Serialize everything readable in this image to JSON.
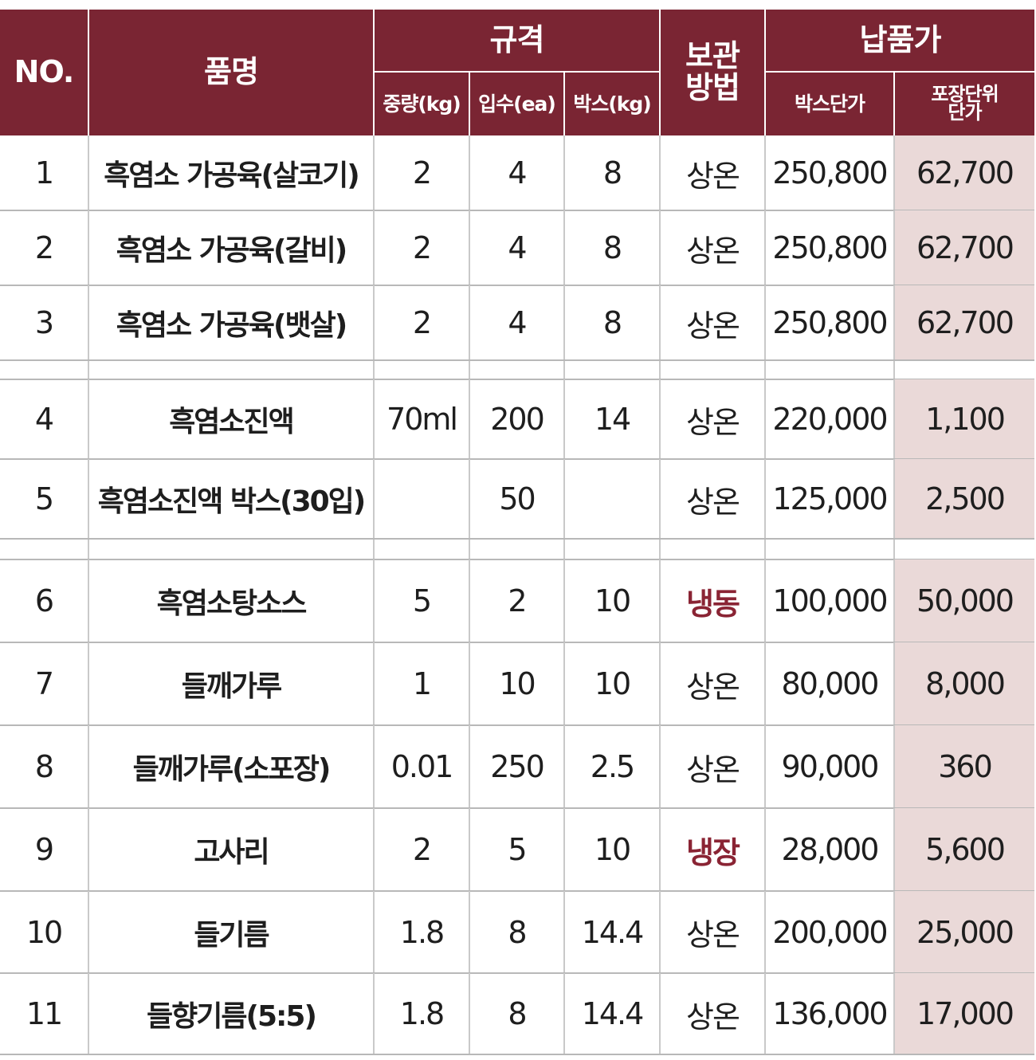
{
  "header": {
    "no": "NO.",
    "name": "품명",
    "spec": "규격",
    "weight": "중량(kg)",
    "count": "입수(ea)",
    "box_kg": "박스(kg)",
    "storage": "보관\n방법",
    "price": "납품가",
    "box_price": "박스단가",
    "unit_price": "포장단위\n단가"
  },
  "accent_color": "#7a2533",
  "unit_price_bg": "#ead9d8",
  "rows": [
    {
      "no": "1",
      "name": "흑염소 가공육(살코기)",
      "weight": "2",
      "count": "4",
      "box_kg": "8",
      "storage": "상온",
      "box_price": "250,800",
      "unit_price": "62,700"
    },
    {
      "no": "2",
      "name": "흑염소 가공육(갈비)",
      "weight": "2",
      "count": "4",
      "box_kg": "8",
      "storage": "상온",
      "box_price": "250,800",
      "unit_price": "62,700"
    },
    {
      "no": "3",
      "name": "흑염소 가공육(뱃살)",
      "weight": "2",
      "count": "4",
      "box_kg": "8",
      "storage": "상온",
      "box_price": "250,800",
      "unit_price": "62,700"
    },
    {
      "no": "4",
      "name": "흑염소진액",
      "weight": "70ml",
      "count": "200",
      "box_kg": "14",
      "storage": "상온",
      "box_price": "220,000",
      "unit_price": "1,100"
    },
    {
      "no": "5",
      "name": "흑염소진액 박스(30입)",
      "weight": "",
      "count": "50",
      "box_kg": "",
      "storage": "상온",
      "box_price": "125,000",
      "unit_price": "2,500"
    },
    {
      "no": "6",
      "name": "흑염소탕소스",
      "weight": "5",
      "count": "2",
      "box_kg": "10",
      "storage": "냉동",
      "box_price": "100,000",
      "unit_price": "50,000"
    },
    {
      "no": "7",
      "name": "들깨가루",
      "weight": "1",
      "count": "10",
      "box_kg": "10",
      "storage": "상온",
      "box_price": "80,000",
      "unit_price": "8,000"
    },
    {
      "no": "8",
      "name": "들깨가루(소포장)",
      "weight": "0.01",
      "count": "250",
      "box_kg": "2.5",
      "storage": "상온",
      "box_price": "90,000",
      "unit_price": "360"
    },
    {
      "no": "9",
      "name": "고사리",
      "weight": "2",
      "count": "5",
      "box_kg": "10",
      "storage": "냉장",
      "box_price": "28,000",
      "unit_price": "5,600"
    },
    {
      "no": "10",
      "name": "들기름",
      "weight": "1.8",
      "count": "8",
      "box_kg": "14.4",
      "storage": "상온",
      "box_price": "200,000",
      "unit_price": "25,000"
    },
    {
      "no": "11",
      "name": "들향기름(5:5)",
      "weight": "1.8",
      "count": "8",
      "box_kg": "14.4",
      "storage": "상온",
      "box_price": "136,000",
      "unit_price": "17,000"
    }
  ]
}
